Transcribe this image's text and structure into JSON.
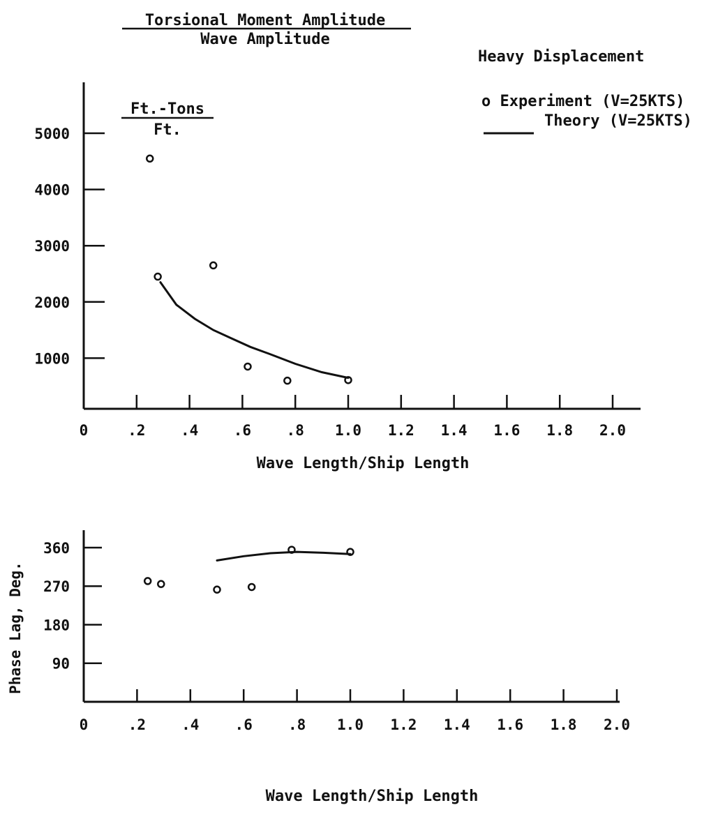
{
  "heading": {
    "numerator": "Torsional Moment Amplitude",
    "denominator": "Wave Amplitude"
  },
  "condition": "Heavy Displacement",
  "legend": {
    "experiment": "o Experiment (V=25KTS)",
    "theory": "Theory (V=25KTS)"
  },
  "units": {
    "numerator": "Ft.-Tons",
    "denominator": "Ft."
  },
  "chart_data": [
    {
      "type": "scatter",
      "title": "Torsional Moment Amplitude / Wave Amplitude",
      "xlabel": "Wave Length/Ship Length",
      "ylabel": "Ft.-Tons / Ft.",
      "xlim": [
        0,
        2.0
      ],
      "ylim": [
        200,
        5000
      ],
      "x_ticks": [
        "0",
        ".2",
        ".4",
        ".6",
        ".8",
        "1.0",
        "1.2",
        "1.4",
        "1.6",
        "1.8",
        "2.0"
      ],
      "x_tick_values": [
        0,
        0.2,
        0.4,
        0.6,
        0.8,
        1.0,
        1.2,
        1.4,
        1.6,
        1.8,
        2.0
      ],
      "y_ticks": [
        "5000",
        "4000",
        "3000",
        "2000",
        "1000"
      ],
      "y_tick_values": [
        5000,
        4000,
        3000,
        2000,
        1000
      ],
      "series": [
        {
          "name": "Experiment (V=25KTS)",
          "mode": "markers",
          "x": [
            0.25,
            0.28,
            0.49,
            0.62,
            0.77,
            1.0
          ],
          "y": [
            4550,
            2450,
            2650,
            850,
            600,
            610
          ]
        },
        {
          "name": "Theory (V=25KTS)",
          "mode": "line",
          "x": [
            0.29,
            0.35,
            0.42,
            0.49,
            0.56,
            0.63,
            0.7,
            0.8,
            0.9,
            1.0
          ],
          "y": [
            2350,
            1950,
            1700,
            1500,
            1350,
            1200,
            1080,
            900,
            750,
            650
          ]
        }
      ]
    },
    {
      "type": "scatter",
      "xlabel": "Wave Length/Ship Length",
      "ylabel": "Phase Lag, Deg.",
      "xlim": [
        0,
        2.0
      ],
      "ylim": [
        0,
        360
      ],
      "x_ticks": [
        "0",
        ".2",
        ".4",
        ".6",
        ".8",
        "1.0",
        "1.2",
        "1.4",
        "1.6",
        "1.8",
        "2.0"
      ],
      "x_tick_values": [
        0,
        0.2,
        0.4,
        0.6,
        0.8,
        1.0,
        1.2,
        1.4,
        1.6,
        1.8,
        2.0
      ],
      "y_ticks": [
        "360",
        "270",
        "180",
        "90"
      ],
      "y_tick_values": [
        360,
        270,
        180,
        90
      ],
      "series": [
        {
          "name": "Experiment (V=25KTS)",
          "mode": "markers",
          "x": [
            0.24,
            0.29,
            0.5,
            0.63,
            0.78,
            1.0
          ],
          "y": [
            282,
            275,
            262,
            268,
            355,
            350
          ]
        },
        {
          "name": "Theory (V=25KTS)",
          "mode": "line",
          "x": [
            0.5,
            0.6,
            0.7,
            0.8,
            0.9,
            1.0
          ],
          "y": [
            330,
            340,
            347,
            350,
            348,
            345
          ]
        }
      ]
    }
  ]
}
